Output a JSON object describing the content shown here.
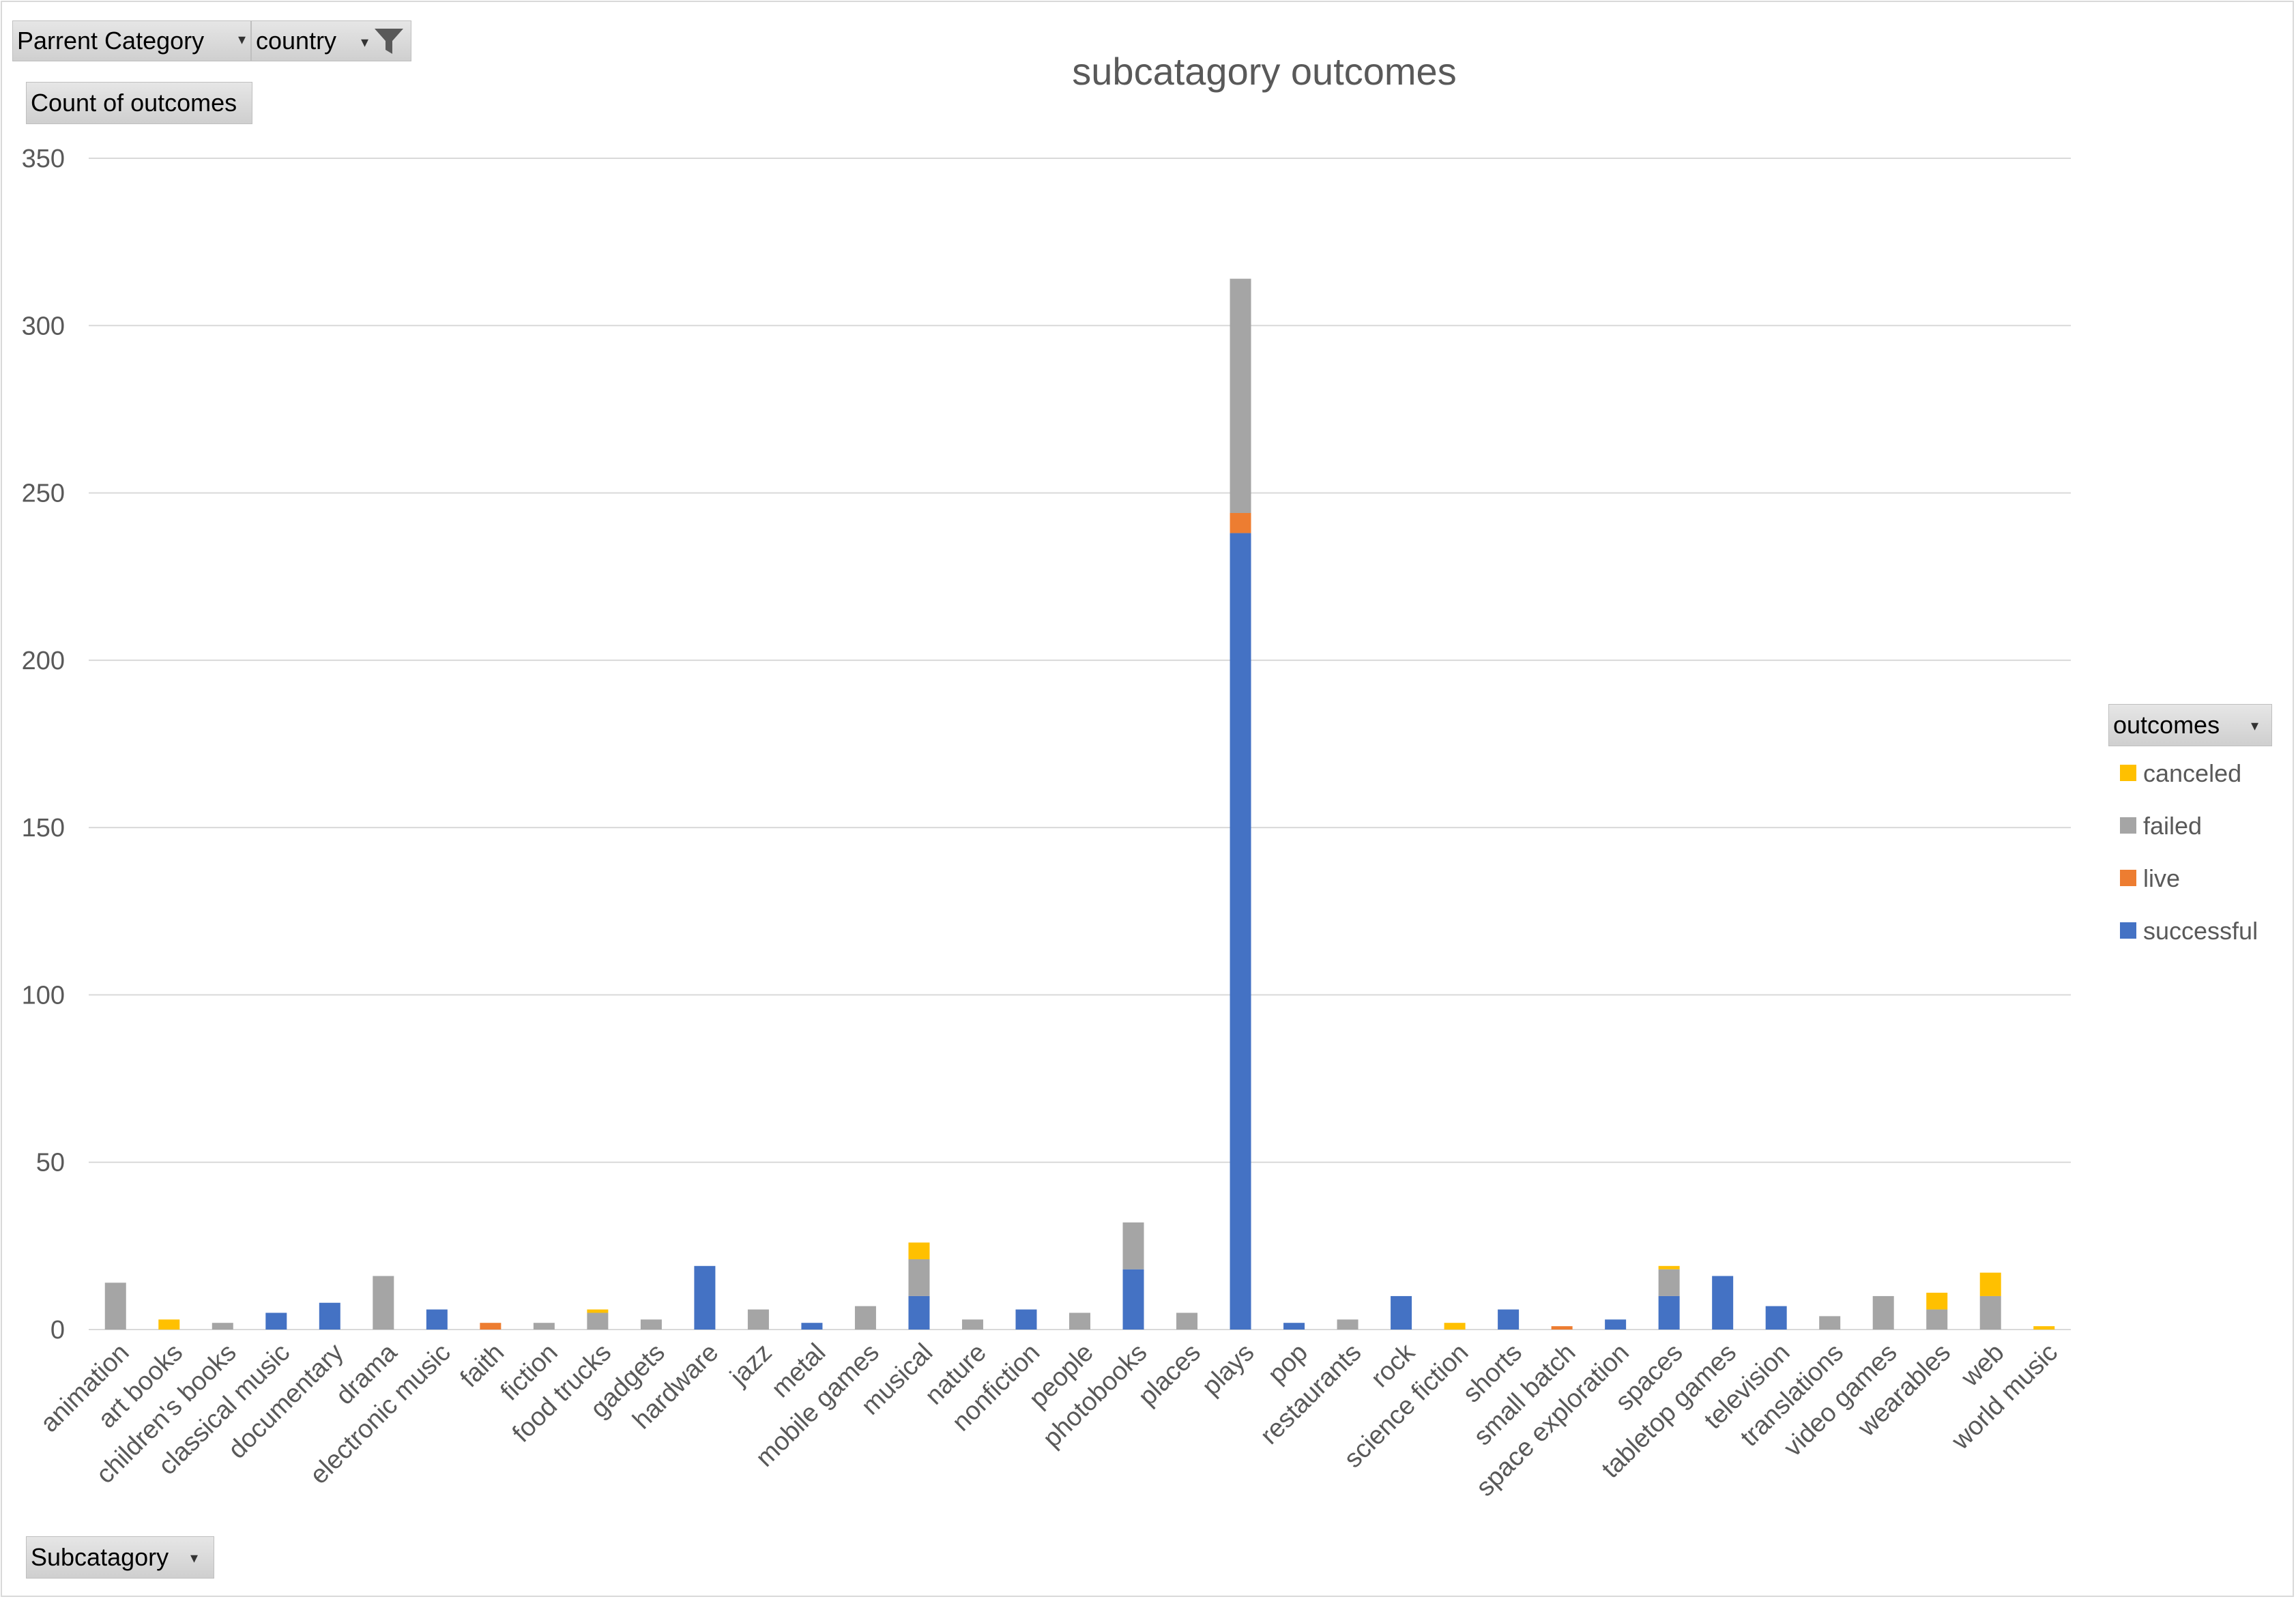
{
  "filters": {
    "parent_category": "Parrent Category",
    "country": "country",
    "value_field": "Count of outcomes",
    "axis_field": "Subcatagory",
    "legend_field": "outcomes"
  },
  "icons": {
    "filter": "funnel-filter-icon",
    "dropdown": "dropdown-arrow-icon"
  },
  "colors": {
    "canceled": "#FFC000",
    "failed": "#A5A5A5",
    "live": "#ED7D31",
    "successful": "#4472C4",
    "grid": "#d9d9d9"
  },
  "chart_data": {
    "type": "bar",
    "stacked": true,
    "title": "subcatagory outcomes",
    "xlabel": "",
    "ylabel": "",
    "ylim": [
      0,
      350
    ],
    "yticks": [
      0,
      50,
      100,
      150,
      200,
      250,
      300,
      350
    ],
    "grid": true,
    "legend_position": "right",
    "categories": [
      "animation",
      "art books",
      "children's books",
      "classical music",
      "documentary",
      "drama",
      "electronic music",
      "faith",
      "fiction",
      "food trucks",
      "gadgets",
      "hardware",
      "jazz",
      "metal",
      "mobile games",
      "musical",
      "nature",
      "nonfiction",
      "people",
      "photobooks",
      "places",
      "plays",
      "pop",
      "restaurants",
      "rock",
      "science fiction",
      "shorts",
      "small batch",
      "space exploration",
      "spaces",
      "tabletop games",
      "television",
      "translations",
      "video games",
      "wearables",
      "web",
      "world music"
    ],
    "series": [
      {
        "name": "successful",
        "values": [
          0,
          0,
          0,
          5,
          8,
          0,
          6,
          0,
          0,
          0,
          0,
          19,
          0,
          2,
          0,
          10,
          0,
          6,
          0,
          18,
          0,
          238,
          2,
          0,
          10,
          0,
          6,
          0,
          3,
          10,
          16,
          7,
          0,
          0,
          0,
          0,
          0
        ]
      },
      {
        "name": "live",
        "values": [
          0,
          0,
          0,
          0,
          0,
          0,
          0,
          2,
          0,
          0,
          0,
          0,
          0,
          0,
          0,
          0,
          0,
          0,
          0,
          0,
          0,
          6,
          0,
          0,
          0,
          0,
          0,
          1,
          0,
          0,
          0,
          0,
          0,
          0,
          0,
          0,
          0
        ]
      },
      {
        "name": "failed",
        "values": [
          14,
          0,
          2,
          0,
          0,
          16,
          0,
          0,
          2,
          5,
          3,
          0,
          6,
          0,
          7,
          11,
          3,
          0,
          5,
          14,
          5,
          70,
          0,
          3,
          0,
          0,
          0,
          0,
          0,
          8,
          0,
          0,
          4,
          10,
          6,
          10,
          0
        ]
      },
      {
        "name": "canceled",
        "values": [
          0,
          3,
          0,
          0,
          0,
          0,
          0,
          0,
          0,
          1,
          0,
          0,
          0,
          0,
          0,
          5,
          0,
          0,
          0,
          0,
          0,
          0,
          0,
          0,
          0,
          2,
          0,
          0,
          0,
          1,
          0,
          0,
          0,
          0,
          5,
          7,
          1
        ]
      }
    ],
    "legend": [
      "canceled",
      "failed",
      "live",
      "successful"
    ]
  }
}
